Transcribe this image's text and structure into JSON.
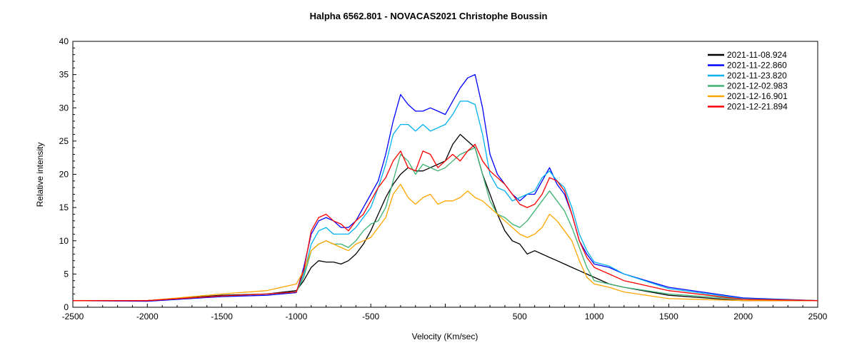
{
  "chart_data": {
    "type": "line",
    "title": "Halpha 6562.801 - NOVACAS2021   Christophe Boussin",
    "xlabel": "Velocity (Km/sec)",
    "ylabel": "Relative intensity",
    "xlim": [
      -2500,
      2500
    ],
    "ylim": [
      0,
      40
    ],
    "xticks": [
      "-2500",
      "-2000",
      "-1500",
      "-1000",
      "-500",
      "",
      "500",
      "1000",
      "1500",
      "2000",
      "2500"
    ],
    "xtick_values": [
      -2500,
      -2000,
      -1500,
      -1000,
      -500,
      0,
      500,
      1000,
      1500,
      2000,
      2500
    ],
    "yticks": [
      0,
      5,
      10,
      15,
      20,
      25,
      30,
      35,
      40
    ],
    "grid": false,
    "legend": "top-right",
    "x": [
      -2500,
      -2000,
      -1500,
      -1200,
      -1000,
      -950,
      -900,
      -850,
      -800,
      -750,
      -700,
      -650,
      -600,
      -550,
      -500,
      -450,
      -400,
      -350,
      -300,
      -250,
      -200,
      -150,
      -100,
      -50,
      0,
      50,
      100,
      150,
      200,
      250,
      300,
      350,
      400,
      450,
      500,
      550,
      600,
      650,
      700,
      750,
      800,
      850,
      900,
      950,
      1000,
      1100,
      1200,
      1500,
      2000,
      2500
    ],
    "series": [
      {
        "name": "2021-11-08.924",
        "color": "#000000",
        "values": [
          1,
          1,
          1.8,
          2,
          2.5,
          4,
          6,
          7,
          6.8,
          6.8,
          6.5,
          7,
          8,
          9.5,
          11.5,
          14,
          16.5,
          18.5,
          20,
          21,
          20.5,
          20.5,
          21,
          21.5,
          22,
          24.5,
          26,
          25,
          24,
          20,
          17,
          14,
          11.5,
          10,
          9.5,
          8,
          8.5,
          8,
          7.5,
          7,
          6.5,
          6,
          5.5,
          5,
          4.5,
          3.5,
          3,
          1.8,
          1,
          1
        ]
      },
      {
        "name": "2021-11-22.860",
        "color": "#0000ff",
        "values": [
          1,
          0.9,
          1.6,
          1.8,
          2.2,
          6,
          11,
          13,
          13.5,
          13,
          12,
          12,
          13,
          15,
          17,
          19,
          23,
          28,
          32,
          30.5,
          29.5,
          29.5,
          30,
          29.5,
          29,
          31,
          33,
          34.5,
          35,
          30,
          23,
          20,
          18.5,
          17,
          16,
          17,
          17,
          19,
          21,
          18.5,
          17,
          14,
          10,
          8,
          6.5,
          6,
          5,
          3,
          1.4,
          1
        ]
      },
      {
        "name": "2021-11-23.820",
        "color": "#00b0f0",
        "values": [
          1,
          1,
          1.7,
          2,
          2.3,
          5,
          9.5,
          11.5,
          12,
          11,
          11,
          11,
          12,
          13.5,
          15,
          18,
          21.5,
          26,
          27.5,
          27.5,
          26.5,
          27.5,
          26.5,
          27,
          27.5,
          29,
          31,
          31,
          30.5,
          26,
          20,
          18,
          17.5,
          16,
          16.5,
          17,
          17.5,
          19.5,
          20.5,
          19,
          18,
          15,
          11,
          8.5,
          6.8,
          6.2,
          5,
          2.8,
          1.3,
          1
        ]
      },
      {
        "name": "2021-12-02.983",
        "color": "#3cb371",
        "values": [
          1,
          1,
          1.7,
          2,
          2.3,
          4.5,
          8.5,
          9.5,
          10,
          9.5,
          9.5,
          9,
          10,
          11.5,
          12.5,
          13,
          15,
          19,
          23,
          22,
          20,
          21.5,
          21,
          20.5,
          21,
          22,
          23,
          23.5,
          24,
          20,
          16,
          14,
          13.5,
          12.5,
          12,
          13,
          14.5,
          16,
          17.5,
          16,
          14.5,
          12,
          9,
          6,
          4,
          3.5,
          3,
          2,
          1.2,
          1
        ]
      },
      {
        "name": "2021-12-16.901",
        "color": "#ffa500",
        "values": [
          1,
          1,
          2,
          2.5,
          3.5,
          5.5,
          8.5,
          9.5,
          10,
          9.5,
          9,
          8.5,
          9.5,
          10,
          10.5,
          12,
          13.5,
          17,
          18.5,
          16.5,
          15.5,
          16.5,
          17,
          15.5,
          16,
          16,
          16.5,
          17.5,
          16.5,
          16,
          15,
          14,
          13,
          12,
          11,
          10.5,
          11,
          12,
          14,
          13,
          11.5,
          10,
          7,
          4.5,
          3.5,
          3,
          2.3,
          1.3,
          1,
          1
        ]
      },
      {
        "name": "2021-12-21.894",
        "color": "#ff0000",
        "values": [
          1,
          1,
          1.7,
          2,
          2.3,
          5.5,
          11.5,
          13.5,
          14,
          13,
          12.5,
          11.5,
          13,
          14,
          16,
          18,
          19.5,
          22,
          23.5,
          21,
          20.5,
          23.5,
          23,
          21,
          22,
          23,
          22,
          23.5,
          24.5,
          22,
          20.5,
          19.5,
          18.5,
          17,
          15.5,
          15,
          15.5,
          17,
          19.5,
          19,
          17.5,
          14,
          10,
          7.5,
          6,
          5,
          4,
          2.5,
          1.2,
          1
        ]
      }
    ]
  }
}
